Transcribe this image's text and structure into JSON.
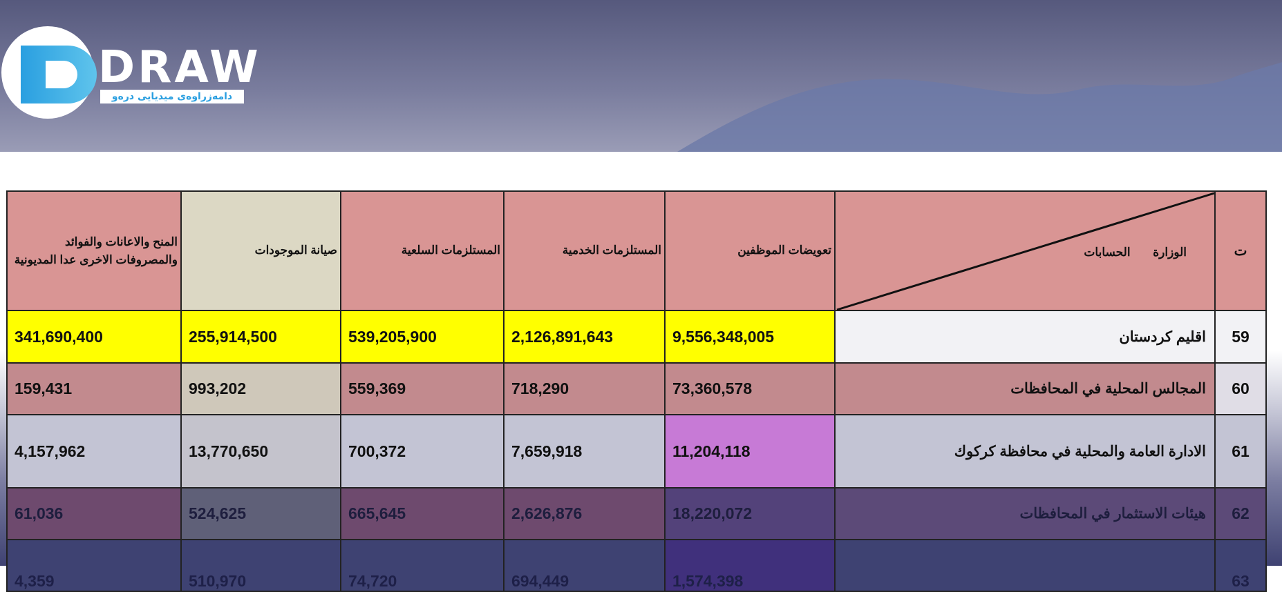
{
  "logo": {
    "text": "DRAW",
    "tagline": "دامەزراوەی میدیایی درەو"
  },
  "table": {
    "headers": {
      "no": "ت",
      "diagonal": "الوزارة الحسابات",
      "employee_comp": "تعويضات الموظفين",
      "service_supplies": "المستلزمات الخدمية",
      "goods_supplies": "المستلزمات السلعية",
      "maintenance": "صيانة الموجودات",
      "grants": "المنح والاعانات والفوائد والمصروفات الاخرى عدا المديونية"
    },
    "rows": [
      {
        "no": "59",
        "name": "اقليم كردستان",
        "employee_comp": "9,556,348,005",
        "service_supplies": "2,126,891,643",
        "goods_supplies": "539,205,900",
        "maintenance": "255,914,500",
        "grants": "341,690,400"
      },
      {
        "no": "60",
        "name": "المجالس المحلية في المحافظات",
        "employee_comp": "73,360,578",
        "service_supplies": "718,290",
        "goods_supplies": "559,369",
        "maintenance": "993,202",
        "grants": "159,431"
      },
      {
        "no": "61",
        "name": "الادارة العامة والمحلية في محافظة كركوك",
        "employee_comp": "11,204,118",
        "service_supplies": "7,659,918",
        "goods_supplies": "700,372",
        "maintenance": "13,770,650",
        "grants": "4,157,962"
      },
      {
        "no": "62",
        "name": "هيئات الاستثمار في المحافظات",
        "employee_comp": "18,220,072",
        "service_supplies": "2,626,876",
        "goods_supplies": "665,645",
        "maintenance": "524,625",
        "grants": "61,036"
      },
      {
        "no": "63",
        "name": "",
        "employee_comp": "1,574,398",
        "service_supplies": "694,449",
        "goods_supplies": "74,720",
        "maintenance": "510,970",
        "grants": "4,359"
      }
    ]
  }
}
